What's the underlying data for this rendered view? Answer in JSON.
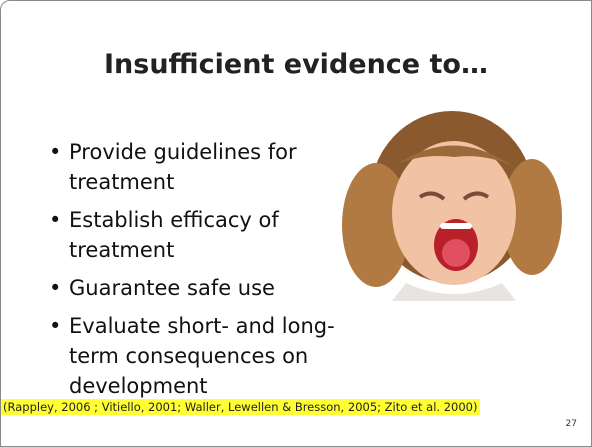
{
  "slide": {
    "title": "Insufficient evidence to…",
    "bullets": [
      [
        "Provide guidelines for",
        "treatment"
      ],
      [
        "Establish efficacy of",
        "treatment"
      ],
      [
        "Guarantee safe use"
      ],
      [
        "Evaluate short- and long-",
        "term consequences on",
        "development"
      ]
    ],
    "citation": "(Rappley, 2006 ; Vitiello, 2001; Waller, Lewellen & Bresson, 2005; Zito et al. 2000)",
    "page_number": "27"
  }
}
